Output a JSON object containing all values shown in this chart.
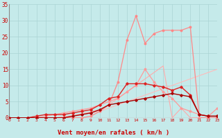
{
  "xlabel": "Vent moyen/en rafales ( km/h )",
  "x": [
    0,
    1,
    2,
    3,
    4,
    5,
    6,
    7,
    8,
    9,
    10,
    11,
    12,
    13,
    14,
    15,
    16,
    17,
    18,
    19,
    20,
    21,
    22,
    23
  ],
  "bg_color": "#c5eaea",
  "grid_color": "#aad4d4",
  "axis_color": "#cc0000",
  "xlabel_color": "#cc0000",
  "tick_color": "#cc0000",
  "lines": [
    {
      "y": [
        0,
        0,
        0,
        0,
        0,
        0,
        0,
        0.5,
        1,
        1.5,
        2,
        3,
        4,
        5,
        6,
        7,
        8,
        9,
        10,
        11,
        12,
        13,
        14,
        15
      ],
      "color": "#ffbbbb",
      "lw": 0.8,
      "marker": null,
      "zorder": 2
    },
    {
      "y": [
        0,
        0,
        0,
        0,
        0,
        0,
        0.3,
        0.7,
        1.2,
        1.8,
        2.5,
        4,
        6,
        8,
        10,
        12,
        14,
        16,
        0,
        3,
        0,
        0,
        0,
        0
      ],
      "color": "#ffaaaa",
      "lw": 0.8,
      "marker": null,
      "zorder": 2
    },
    {
      "y": [
        0,
        0,
        0,
        0,
        0.5,
        1,
        1.5,
        2,
        2.5,
        3,
        4,
        5,
        6,
        8,
        10,
        15,
        11,
        8,
        6,
        3,
        2,
        1,
        0.5,
        3
      ],
      "color": "#ff9999",
      "lw": 0.9,
      "marker": "o",
      "zorder": 3
    },
    {
      "y": [
        0,
        0,
        0,
        0,
        0,
        0,
        0,
        0,
        0,
        0.5,
        2,
        4,
        11,
        24,
        31.5,
        23,
        26,
        27,
        27,
        27,
        28,
        0,
        0,
        0
      ],
      "color": "#ff8888",
      "lw": 0.9,
      "marker": "o",
      "zorder": 3
    },
    {
      "y": [
        0,
        0,
        0,
        0.5,
        1,
        1,
        1,
        1.5,
        2,
        2.5,
        4,
        6,
        6.5,
        10.5,
        10.5,
        10.5,
        10,
        9.5,
        8.5,
        9.5,
        7,
        1,
        0.5,
        0.5
      ],
      "color": "#dd2222",
      "lw": 1.0,
      "marker": "D",
      "zorder": 4
    },
    {
      "y": [
        0,
        0,
        0,
        0,
        0,
        0,
        0,
        0.5,
        1,
        1.5,
        2.5,
        4,
        4.5,
        5,
        5.5,
        6,
        6.5,
        7,
        7.5,
        7,
        6.5,
        1,
        0.5,
        0.5
      ],
      "color": "#aa0000",
      "lw": 1.0,
      "marker": "D",
      "zorder": 4
    }
  ],
  "xlim": [
    0,
    23
  ],
  "ylim": [
    0,
    35
  ],
  "yticks": [
    0,
    5,
    10,
    15,
    20,
    25,
    30,
    35
  ],
  "xticks": [
    0,
    1,
    2,
    3,
    4,
    5,
    6,
    7,
    8,
    9,
    10,
    11,
    12,
    13,
    14,
    15,
    16,
    17,
    18,
    19,
    20,
    21,
    22,
    23
  ]
}
